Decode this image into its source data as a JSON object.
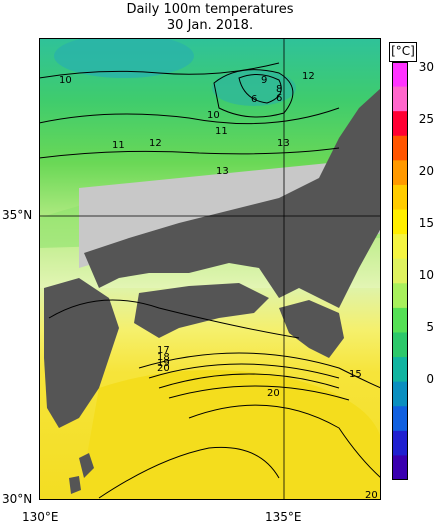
{
  "title": "Daily 100m temperatures",
  "date": "30 Jan. 2018.",
  "lat_labels": [
    "35°N",
    "30°N"
  ],
  "lon_labels": [
    "130°E",
    "135°E"
  ],
  "colorbar": {
    "unit": "[°C]",
    "ticks": [
      "30",
      "25",
      "20",
      "15",
      "10",
      "5",
      "0"
    ],
    "colors": [
      "#ff33ff",
      "#ff66cc",
      "#ff0033",
      "#ff5500",
      "#ff9900",
      "#ffcc00",
      "#ffee00",
      "#f5f542",
      "#dff25f",
      "#a8f05c",
      "#55e055",
      "#2cc86a",
      "#10b4a0",
      "#0a8fc0",
      "#1060e0",
      "#2020d0",
      "#3a00b0"
    ]
  },
  "contour_labels": [
    "10",
    "9",
    "12",
    "6",
    "8",
    "6",
    "10",
    "11",
    "11",
    "12",
    "13",
    "13",
    "15",
    "20",
    "17",
    "18",
    "19",
    "20",
    "20"
  ],
  "colors": {
    "land": "#555555",
    "coast_land": "#c8c8c8",
    "warm": "#f5e02a",
    "green": "#4cd35c",
    "teal": "#3cc6a4"
  }
}
